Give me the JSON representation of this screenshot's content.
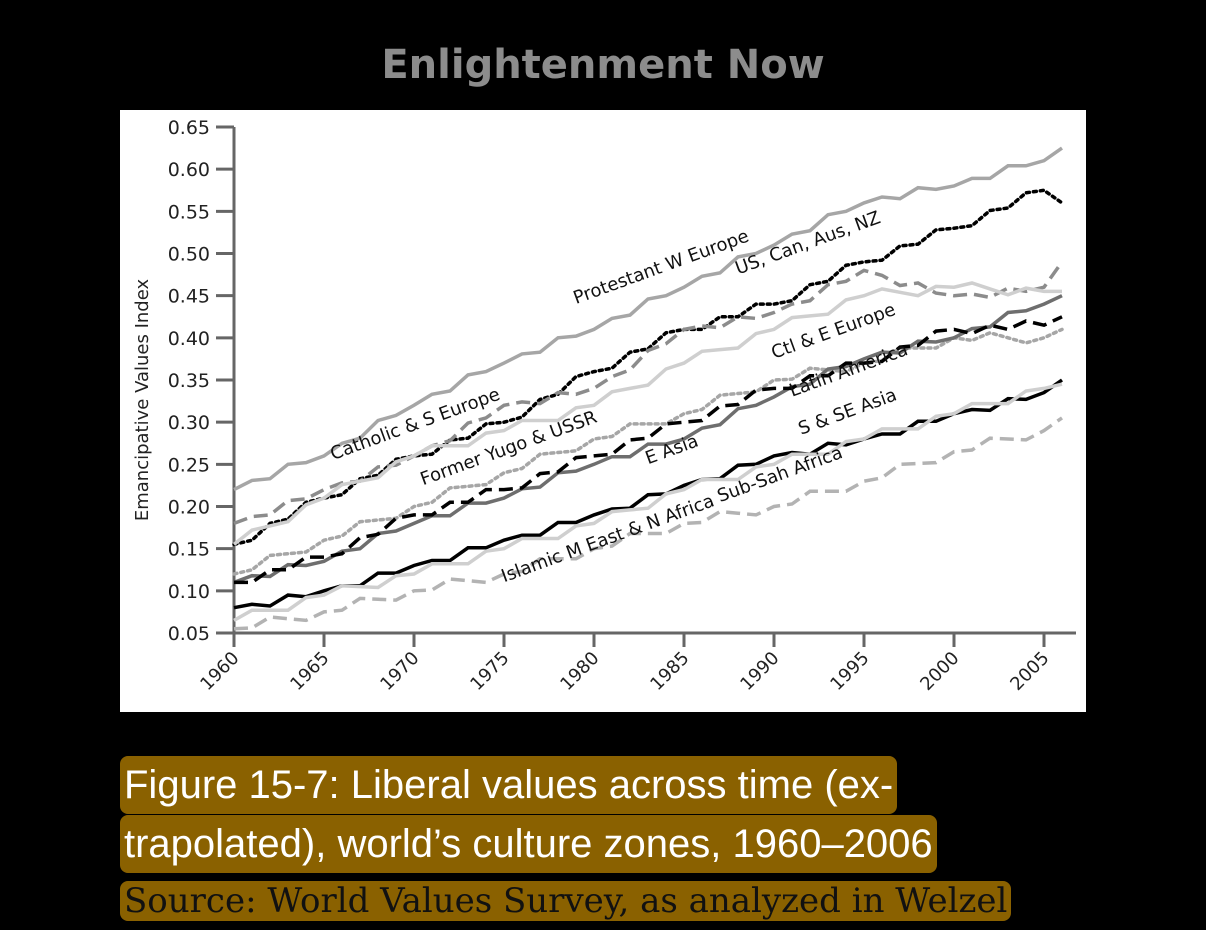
{
  "book_title": "Enlightenment Now",
  "caption": {
    "line1": "Figure 15-7: Liberal values across time (ex-",
    "line2": "trapolated), world’s culture zones, 1960–2006",
    "source_partial": "Source: World Values Survey, as analyzed in Welzel"
  },
  "chart_data": {
    "type": "line",
    "title": "",
    "xlabel": "",
    "ylabel": "Emancipative Values Index",
    "xlim": [
      1960,
      2006
    ],
    "ylim": [
      0.05,
      0.65
    ],
    "x_ticks": [
      "1960",
      "1965",
      "1970",
      "1975",
      "1980",
      "1985",
      "1990",
      "1995",
      "2000",
      "2005"
    ],
    "y_ticks": [
      "0.05",
      "0.10",
      "0.15",
      "0.20",
      "0.25",
      "0.30",
      "0.35",
      "0.40",
      "0.45",
      "0.50",
      "0.55",
      "0.60",
      "0.65"
    ],
    "grid": false,
    "legend": "inline labels",
    "x": [
      1960,
      1965,
      1970,
      1975,
      1980,
      1985,
      1990,
      1995,
      2000,
      2005,
      2006
    ],
    "series": [
      {
        "name": "Protestant W Europe",
        "color": "#a6a6a6",
        "dash": "solid",
        "values": [
          0.22,
          0.26,
          0.32,
          0.37,
          0.41,
          0.46,
          0.51,
          0.56,
          0.58,
          0.61,
          0.625
        ]
      },
      {
        "name": "US, Can, Aus, NZ",
        "color": "#000000",
        "dash": "dotted",
        "values": [
          0.155,
          0.21,
          0.26,
          0.3,
          0.36,
          0.41,
          0.44,
          0.49,
          0.53,
          0.575,
          0.56
        ]
      },
      {
        "name": "Catholic & S Europe",
        "color": "#8c8c8c",
        "dash": "dashed",
        "values": [
          0.18,
          0.22,
          0.26,
          0.32,
          0.34,
          0.41,
          0.43,
          0.48,
          0.45,
          0.46,
          0.49
        ]
      },
      {
        "name": "Ctl & E Europe",
        "color": "#cfcfcf",
        "dash": "solid",
        "values": [
          0.155,
          0.21,
          0.26,
          0.29,
          0.32,
          0.37,
          0.41,
          0.45,
          0.46,
          0.455,
          0.455
        ]
      },
      {
        "name": "Former Yugo & USSR",
        "color": "#a6a6a6",
        "dash": "dotted",
        "values": [
          0.12,
          0.16,
          0.2,
          0.24,
          0.28,
          0.31,
          0.35,
          0.37,
          0.4,
          0.4,
          0.41
        ]
      },
      {
        "name": "Latin America",
        "color": "#6e6e6e",
        "dash": "solid",
        "values": [
          0.11,
          0.135,
          0.18,
          0.21,
          0.25,
          0.28,
          0.33,
          0.375,
          0.4,
          0.44,
          0.45
        ]
      },
      {
        "name": "E Asia",
        "color": "#000000",
        "dash": "dashed",
        "values": [
          0.11,
          0.14,
          0.19,
          0.22,
          0.26,
          0.3,
          0.34,
          0.37,
          0.41,
          0.415,
          0.425
        ]
      },
      {
        "name": "S & SE Asia",
        "color": "#000000",
        "dash": "solid",
        "values": [
          0.08,
          0.1,
          0.13,
          0.16,
          0.19,
          0.225,
          0.26,
          0.28,
          0.31,
          0.335,
          0.35
        ]
      },
      {
        "name": "Sub-Sah Africa",
        "color": "#cfcfcf",
        "dash": "solid",
        "values": [
          0.065,
          0.095,
          0.12,
          0.15,
          0.18,
          0.22,
          0.25,
          0.28,
          0.31,
          0.34,
          0.345
        ]
      },
      {
        "name": "Islamic M East & N Africa",
        "color": "#b3b3b3",
        "dash": "dashed",
        "values": [
          0.055,
          0.075,
          0.1,
          0.12,
          0.15,
          0.18,
          0.2,
          0.23,
          0.265,
          0.29,
          0.305
        ]
      }
    ],
    "annotations": [
      {
        "text": "Protestant W Europe",
        "x": 1979,
        "y": 0.44
      },
      {
        "text": "US, Can, Aus, NZ",
        "x": 1988,
        "y": 0.475
      },
      {
        "text": "Catholic & S Europe",
        "x": 1965.5,
        "y": 0.255
      },
      {
        "text": "Ctl & E Europe",
        "x": 1990,
        "y": 0.375
      },
      {
        "text": "Former Yugo & USSR",
        "x": 1970.5,
        "y": 0.225
      },
      {
        "text": "Latin America",
        "x": 1991,
        "y": 0.33
      },
      {
        "text": "E Asia",
        "x": 1983,
        "y": 0.25
      },
      {
        "text": "S & SE Asia",
        "x": 1991.5,
        "y": 0.285
      },
      {
        "text": "Sub-Sah Africa",
        "x": 1987,
        "y": 0.205
      },
      {
        "text": "Islamic M East & N Africa",
        "x": 1975,
        "y": 0.11
      }
    ]
  }
}
